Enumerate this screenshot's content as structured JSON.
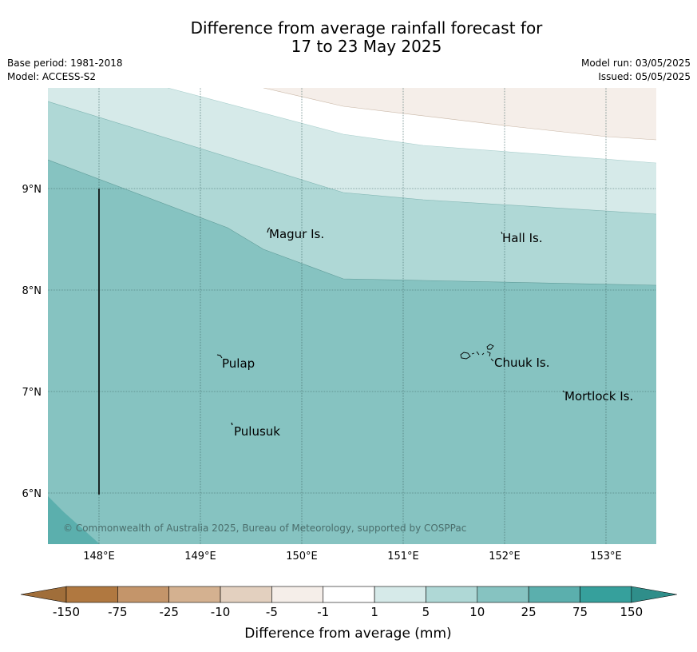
{
  "header": {
    "title_line1": "Difference from average rainfall forecast for",
    "title_line2": "17 to 23 May 2025",
    "base_period": "Base period: 1981-2018",
    "model": "Model: ACCESS-S2",
    "model_run": "Model run: 03/05/2025",
    "issued": "Issued: 05/05/2025"
  },
  "map": {
    "lat_labels": [
      "9°N",
      "8°N",
      "7°N",
      "6°N"
    ],
    "lon_labels": [
      "148°E",
      "149°E",
      "150°E",
      "151°E",
      "152°E",
      "153°E"
    ],
    "places": {
      "magur": "Magur Is.",
      "hall": "Hall Is.",
      "pulap": "Pulap",
      "chuuk": "Chuuk Is.",
      "mortlock": "Mortlock Is.",
      "pulusuk": "Pulusuk"
    },
    "copyright": "© Commonwealth of Australia 2025, Bureau of Meteorology, supported by COSPPac",
    "colors": {
      "band_1_5": "#d6eae9",
      "band_5_10": "#afd8d6",
      "band_10_25": "#86c3c1",
      "band_25_75": "#5bafad",
      "band_neg5_neg1": "#f5eee9"
    }
  },
  "colorbar": {
    "ticks": [
      "-150",
      "-75",
      "-25",
      "-10",
      "-5",
      "-1",
      "1",
      "5",
      "10",
      "25",
      "75",
      "150"
    ],
    "colors": [
      "#b07840",
      "#c4956a",
      "#d4b190",
      "#e3d0bf",
      "#f5eee9",
      "#ffffff",
      "#d6eae9",
      "#afd8d6",
      "#86c3c1",
      "#5bafad",
      "#36a09c"
    ],
    "under_color": "#a06e3a",
    "over_color": "#2f8e8a",
    "label": "Difference from average (mm)"
  }
}
